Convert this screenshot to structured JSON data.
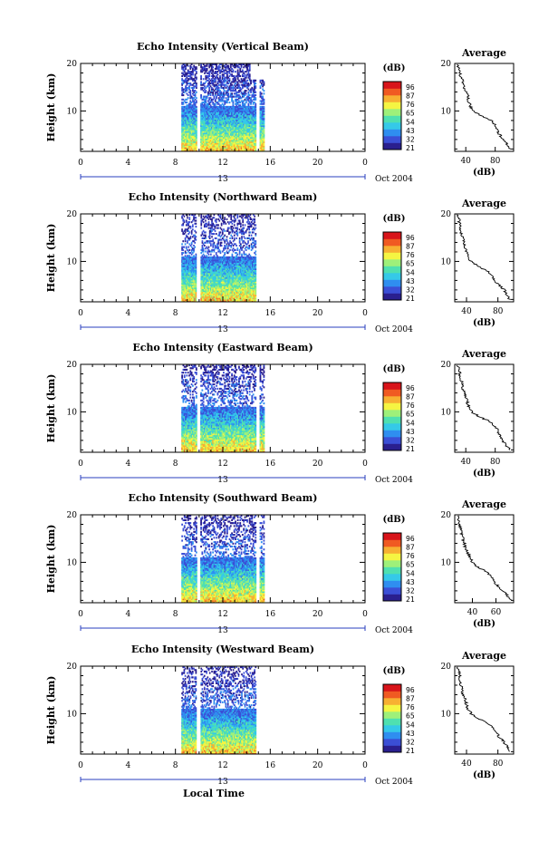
{
  "chart_data": [
    {
      "type": "heatmap",
      "title": "Echo Intensity (Vertical Beam)",
      "ylabel": "Height (km)",
      "xlabel": "",
      "x_ticks": [
        "0",
        "4",
        "8",
        "12",
        "16",
        "20",
        "0"
      ],
      "y_ticks": [
        "20",
        "10"
      ],
      "xlim": [
        0,
        24
      ],
      "ylim": [
        1.5,
        20
      ],
      "date_center": "13",
      "date_label": "Oct 2004",
      "data_window": [
        8.5,
        15.5
      ],
      "gaps": [
        9.9,
        14.9
      ],
      "colorbar": {
        "unit": "(dB)",
        "ticks": [
          "96",
          "87",
          "76",
          "65",
          "54",
          "43",
          "32",
          "21"
        ],
        "range": [
          21,
          96
        ]
      },
      "profile": {
        "title": "Average",
        "xlabel": "(dB)",
        "x_ticks": [
          "40",
          "80"
        ],
        "y_ticks": [
          "20",
          "10"
        ],
        "xlim": [
          25,
          105
        ],
        "ylim": [
          1.5,
          20
        ],
        "heights": [
          2,
          3,
          4,
          5,
          6,
          7,
          8,
          9,
          10,
          11,
          12,
          13,
          14,
          15,
          16,
          17,
          18,
          19,
          20
        ],
        "values": [
          100,
          96,
          90,
          86,
          82,
          80,
          74,
          60,
          50,
          46,
          44,
          43,
          40,
          38,
          36,
          34,
          32,
          30,
          28
        ]
      }
    },
    {
      "type": "heatmap",
      "title": "Echo Intensity (Northward Beam)",
      "ylabel": "Height (km)",
      "xlabel": "",
      "x_ticks": [
        "0",
        "4",
        "8",
        "12",
        "16",
        "20",
        "0"
      ],
      "y_ticks": [
        "20",
        "10"
      ],
      "xlim": [
        0,
        24
      ],
      "ylim": [
        1.5,
        20
      ],
      "date_center": "13",
      "date_label": "Oct 2004",
      "data_window": [
        8.5,
        14.8
      ],
      "gaps": [
        9.9,
        14.9
      ],
      "colorbar": {
        "unit": "(dB)",
        "ticks": [
          "96",
          "87",
          "76",
          "65",
          "54",
          "43",
          "32",
          "21"
        ],
        "range": [
          21,
          96
        ]
      },
      "profile": {
        "title": "Average",
        "xlabel": "(dB)",
        "x_ticks": [
          "40",
          "80"
        ],
        "y_ticks": [
          "20",
          "10"
        ],
        "xlim": [
          25,
          100
        ],
        "ylim": [
          1.5,
          20
        ],
        "heights": [
          2,
          3,
          4,
          5,
          6,
          7,
          8,
          9,
          10,
          11,
          12,
          13,
          14,
          15,
          16,
          17,
          18,
          19,
          20
        ],
        "values": [
          95,
          92,
          88,
          82,
          76,
          72,
          66,
          55,
          46,
          42,
          40,
          38,
          36,
          35,
          33,
          32,
          31,
          30,
          29
        ]
      }
    },
    {
      "type": "heatmap",
      "title": "Echo Intensity (Eastward Beam)",
      "ylabel": "Height (km)",
      "xlabel": "",
      "x_ticks": [
        "0",
        "4",
        "8",
        "12",
        "16",
        "20",
        "0"
      ],
      "y_ticks": [
        "20",
        "10"
      ],
      "xlim": [
        0,
        24
      ],
      "ylim": [
        1.5,
        20
      ],
      "date_center": "13",
      "date_label": "Oct 2004",
      "data_window": [
        8.5,
        15.5
      ],
      "gaps": [
        9.9,
        14.9
      ],
      "colorbar": {
        "unit": "(dB)",
        "ticks": [
          "96",
          "87",
          "76",
          "65",
          "54",
          "43",
          "32",
          "21"
        ],
        "range": [
          21,
          96
        ]
      },
      "profile": {
        "title": "Average",
        "xlabel": "(dB)",
        "x_ticks": [
          "40",
          "80"
        ],
        "y_ticks": [
          "20",
          "10"
        ],
        "xlim": [
          25,
          105
        ],
        "ylim": [
          1.5,
          20
        ],
        "heights": [
          2,
          3,
          4,
          5,
          6,
          7,
          8,
          9,
          10,
          11,
          12,
          13,
          14,
          15,
          16,
          17,
          18,
          19,
          20
        ],
        "values": [
          100,
          95,
          90,
          86,
          84,
          80,
          72,
          58,
          48,
          44,
          42,
          40,
          38,
          36,
          35,
          33,
          32,
          30,
          29
        ]
      }
    },
    {
      "type": "heatmap",
      "title": "Echo Intensity (Southward Beam)",
      "ylabel": "Height (km)",
      "xlabel": "",
      "x_ticks": [
        "0",
        "4",
        "8",
        "12",
        "16",
        "20",
        "0"
      ],
      "y_ticks": [
        "20",
        "10"
      ],
      "xlim": [
        0,
        24
      ],
      "ylim": [
        1.5,
        20
      ],
      "date_center": "13",
      "date_label": "Oct 2004",
      "data_window": [
        8.5,
        15.5
      ],
      "gaps": [
        9.9,
        14.9
      ],
      "colorbar": {
        "unit": "(dB)",
        "ticks": [
          "96",
          "87",
          "76",
          "65",
          "54",
          "43",
          "32",
          "21"
        ],
        "range": [
          21,
          96
        ]
      },
      "profile": {
        "title": "Average",
        "xlabel": "(dB)",
        "x_ticks": [
          "40",
          "60"
        ],
        "y_ticks": [
          "20",
          "10"
        ],
        "xlim": [
          25,
          75
        ],
        "ylim": [
          1.5,
          20
        ],
        "heights": [
          2,
          3,
          4,
          5,
          6,
          7,
          8,
          9,
          10,
          11,
          12,
          13,
          14,
          15,
          16,
          17,
          18,
          19,
          20
        ],
        "values": [
          72,
          70,
          66,
          62,
          58,
          56,
          52,
          45,
          40,
          38,
          36,
          34,
          33,
          32,
          31,
          30,
          29,
          28,
          28
        ]
      }
    },
    {
      "type": "heatmap",
      "title": "Echo Intensity (Westward Beam)",
      "ylabel": "Height (km)",
      "xlabel": "Local Time",
      "x_ticks": [
        "0",
        "4",
        "8",
        "12",
        "16",
        "20",
        "0"
      ],
      "y_ticks": [
        "20",
        "10"
      ],
      "xlim": [
        0,
        24
      ],
      "ylim": [
        1.5,
        20
      ],
      "date_center": "13",
      "date_label": "Oct 2004",
      "data_window": [
        8.5,
        14.8
      ],
      "gaps": [
        9.9,
        14.9
      ],
      "colorbar": {
        "unit": "(dB)",
        "ticks": [
          "96",
          "87",
          "76",
          "65",
          "54",
          "43",
          "32",
          "21"
        ],
        "range": [
          21,
          96
        ]
      },
      "profile": {
        "title": "Average",
        "xlabel": "(dB)",
        "x_ticks": [
          "40",
          "80"
        ],
        "y_ticks": [
          "20",
          "10"
        ],
        "xlim": [
          25,
          100
        ],
        "ylim": [
          1.5,
          20
        ],
        "heights": [
          2,
          3,
          4,
          5,
          6,
          7,
          8,
          9,
          10,
          11,
          12,
          13,
          14,
          15,
          16,
          17,
          18,
          19,
          20
        ],
        "values": [
          95,
          92,
          88,
          82,
          78,
          74,
          66,
          55,
          46,
          42,
          40,
          38,
          36,
          34,
          33,
          32,
          31,
          30,
          29
        ]
      }
    }
  ],
  "colors": {
    "colormap": [
      "#2a1f8f",
      "#3b4fd6",
      "#2f8ef0",
      "#35c9e8",
      "#4fe0b0",
      "#9ef07a",
      "#f5f542",
      "#f7b032",
      "#f05a22",
      "#d8141a"
    ]
  }
}
